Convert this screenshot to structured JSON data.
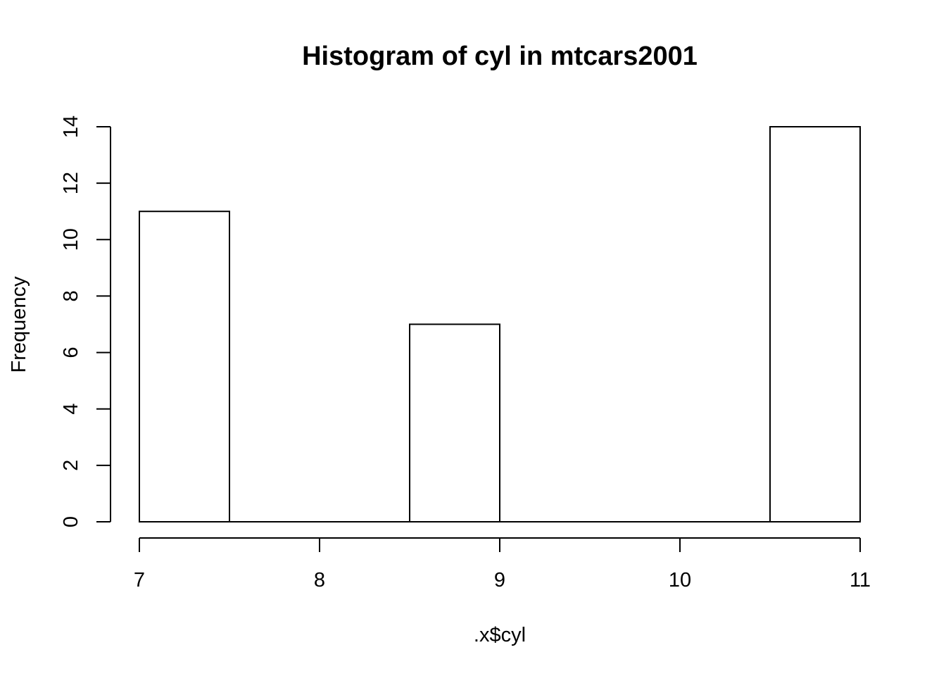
{
  "chart_data": {
    "type": "bar",
    "title": "Histogram of cyl in mtcars2001",
    "xlabel": ".x$cyl",
    "ylabel": "Frequency",
    "bins": [
      {
        "from": 7.0,
        "to": 7.5,
        "count": 11
      },
      {
        "from": 7.5,
        "to": 8.0,
        "count": 0
      },
      {
        "from": 8.0,
        "to": 8.5,
        "count": 0
      },
      {
        "from": 8.5,
        "to": 9.0,
        "count": 7
      },
      {
        "from": 9.0,
        "to": 9.5,
        "count": 0
      },
      {
        "from": 9.5,
        "to": 10.0,
        "count": 0
      },
      {
        "from": 10.0,
        "to": 10.5,
        "count": 0
      },
      {
        "from": 10.5,
        "to": 11.0,
        "count": 14
      }
    ],
    "xlim": [
      7,
      11
    ],
    "ylim": [
      0,
      14
    ],
    "x_ticks": [
      "7",
      "8",
      "9",
      "10",
      "11"
    ],
    "y_ticks": [
      "0",
      "2",
      "4",
      "6",
      "8",
      "10",
      "12",
      "14"
    ],
    "grid": false,
    "legend": "none",
    "bar_fill": "#ffffff",
    "bar_stroke": "#000000"
  }
}
